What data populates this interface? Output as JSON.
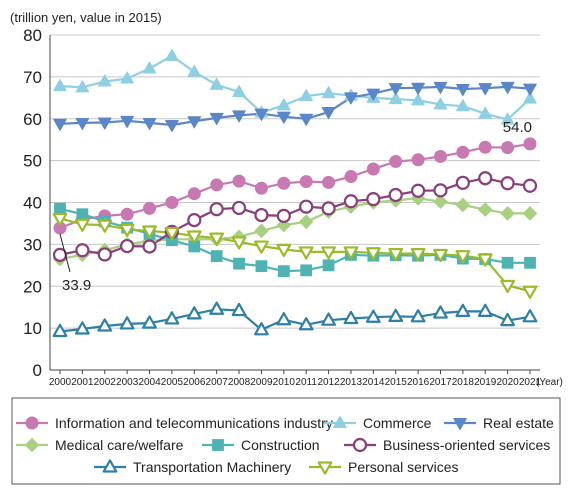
{
  "chart_data": {
    "type": "line",
    "unit_label": "(trillion yen, value in 2015)",
    "x_unit": "(Year)",
    "ylim": [
      0,
      80
    ],
    "yticks": [
      0,
      10,
      20,
      30,
      40,
      50,
      60,
      70,
      80
    ],
    "grid": true,
    "legend_position": "bottom",
    "x": [
      "2000",
      "2001",
      "2002",
      "2003",
      "2004",
      "2005",
      "2006",
      "2007",
      "2008",
      "2009",
      "2010",
      "2011",
      "2012",
      "2013",
      "2014",
      "2015",
      "2016",
      "2017",
      "2018",
      "2019",
      "2020",
      "2021"
    ],
    "series": [
      {
        "name": "Information and telecommunications industry",
        "color": "#c879b1",
        "marker": "circle",
        "values": [
          33.9,
          36.0,
          36.8,
          37.2,
          38.6,
          40.0,
          42.1,
          44.2,
          45.1,
          43.4,
          44.6,
          45.0,
          44.8,
          46.2,
          48.0,
          49.8,
          50.2,
          51.0,
          52.0,
          53.2,
          53.1,
          54.0
        ]
      },
      {
        "name": "Commerce",
        "color": "#8fcfe3",
        "marker": "triangle-up",
        "values": [
          67.8,
          67.5,
          68.9,
          69.6,
          72.0,
          75.0,
          71.2,
          68.1,
          66.4,
          61.5,
          63.2,
          65.4,
          66.1,
          65.5,
          65.0,
          64.7,
          64.4,
          63.4,
          63.0,
          61.2,
          59.8,
          64.8
        ]
      },
      {
        "name": "Real estate",
        "color": "#5b86c7",
        "marker": "triangle-down",
        "values": [
          58.8,
          59.0,
          59.1,
          59.5,
          59.0,
          58.5,
          59.4,
          60.2,
          60.8,
          61.2,
          60.5,
          60.0,
          61.6,
          65.1,
          66.0,
          67.3,
          67.4,
          67.6,
          67.1,
          67.3,
          67.6,
          67.2
        ]
      },
      {
        "name": "Medical care/welfare",
        "color": "#a8d080",
        "marker": "diamond",
        "values": [
          26.5,
          27.5,
          28.6,
          30.0,
          30.8,
          31.2,
          31.2,
          31.2,
          31.8,
          33.2,
          34.6,
          35.4,
          37.8,
          39.0,
          40.0,
          40.5,
          41.0,
          40.2,
          39.4,
          38.3,
          37.4,
          37.4
        ]
      },
      {
        "name": "Construction",
        "color": "#4fb3b3",
        "marker": "square",
        "values": [
          38.5,
          37.2,
          35.5,
          34.0,
          32.5,
          31.0,
          29.5,
          27.2,
          25.4,
          24.8,
          23.6,
          23.8,
          25.0,
          27.5,
          27.3,
          27.4,
          27.3,
          27.5,
          26.6,
          26.5,
          25.6,
          25.6
        ]
      },
      {
        "name": "Business-oriented services",
        "color": "#8a3f7a",
        "marker": "circle-open",
        "values": [
          27.5,
          28.6,
          27.6,
          29.6,
          29.5,
          33.0,
          35.8,
          38.4,
          38.7,
          37.0,
          36.8,
          39.0,
          38.6,
          40.3,
          40.8,
          41.8,
          42.8,
          42.9,
          44.7,
          45.8,
          44.6,
          44.0
        ]
      },
      {
        "name": "Transportation Machinery",
        "color": "#2f7fa8",
        "marker": "triangle-up-open",
        "values": [
          9.2,
          9.8,
          10.5,
          11.0,
          11.2,
          12.2,
          13.4,
          14.5,
          14.2,
          9.6,
          12.0,
          10.8,
          11.9,
          12.3,
          12.6,
          12.8,
          12.7,
          13.6,
          14.0,
          14.0,
          11.8,
          12.7
        ]
      },
      {
        "name": "Personal services",
        "color": "#9bbb2a",
        "marker": "triangle-down-open",
        "values": [
          36.2,
          34.8,
          34.6,
          33.6,
          33.2,
          32.8,
          32.0,
          31.5,
          30.6,
          29.6,
          28.8,
          28.2,
          28.2,
          28.2,
          28.0,
          27.8,
          27.8,
          27.6,
          27.3,
          26.5,
          20.2,
          18.8
        ]
      }
    ],
    "annotations": [
      {
        "text": "54.0",
        "series": 0,
        "index": 21
      },
      {
        "text": "33.9",
        "series": 0,
        "index": 0
      }
    ]
  }
}
